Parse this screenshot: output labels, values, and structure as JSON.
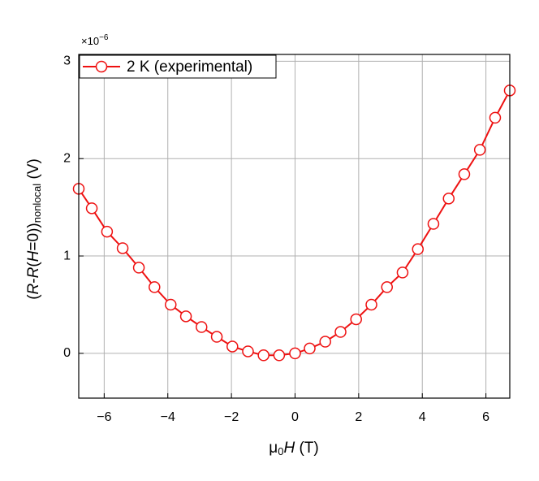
{
  "chart_data": {
    "type": "line",
    "x_label_parts": [
      "μ",
      "0",
      "H",
      " (T)"
    ],
    "y_label_parts": [
      "(",
      "R",
      "-",
      "R",
      "(",
      "H",
      "=0))",
      "nonlocal",
      " (V)"
    ],
    "multiplier": "×10",
    "multiplier_exp": "−6",
    "xlim": [
      -6.8,
      6.75
    ],
    "ylim": [
      -0.46,
      3.07
    ],
    "xticks": [
      {
        "value": -6,
        "label": "−6"
      },
      {
        "value": -4,
        "label": "−4"
      },
      {
        "value": -2,
        "label": "−2"
      },
      0,
      2,
      4,
      6
    ],
    "yticks": [
      0,
      1,
      2,
      3
    ],
    "grid": true,
    "legend": "upper left",
    "series": [
      {
        "name": "2 K (experimental)",
        "color": "#ee1111",
        "x": [
          -6.8,
          -6.39,
          -5.91,
          -5.42,
          -4.91,
          -4.42,
          -3.91,
          -3.43,
          -2.94,
          -2.46,
          -1.97,
          -1.48,
          -0.99,
          -0.5,
          0,
          0.46,
          0.95,
          1.43,
          1.92,
          2.4,
          2.89,
          3.38,
          3.86,
          4.35,
          4.83,
          5.32,
          5.81,
          6.29,
          6.75
        ],
        "values": [
          1.69,
          1.49,
          1.25,
          1.08,
          0.88,
          0.68,
          0.5,
          0.38,
          0.27,
          0.17,
          0.07,
          0.02,
          -0.02,
          -0.02,
          0,
          0.05,
          0.12,
          0.22,
          0.35,
          0.5,
          0.68,
          0.83,
          1.07,
          1.33,
          1.59,
          1.84,
          2.09,
          2.42,
          2.7
        ]
      }
    ]
  }
}
